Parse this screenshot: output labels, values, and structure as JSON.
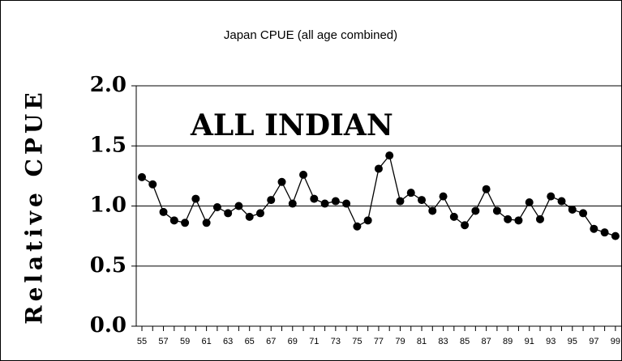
{
  "chart_data": {
    "type": "line",
    "title": "Japan CPUE (all age combined)",
    "y_label": "Relative CPUE",
    "annotation": "ALL INDIAN",
    "categories": [
      "55",
      null,
      "57",
      null,
      "59",
      null,
      "61",
      null,
      "63",
      null,
      "65",
      null,
      "67",
      null,
      "69",
      null,
      "71",
      null,
      "73",
      null,
      "75",
      null,
      "77",
      null,
      "79",
      null,
      "81",
      null,
      "83",
      null,
      "85",
      null,
      "87",
      null,
      "89",
      null,
      "91",
      null,
      "93",
      null,
      "95",
      null,
      "97",
      null,
      "99"
    ],
    "values": [
      1.24,
      1.18,
      0.95,
      0.88,
      0.86,
      1.06,
      0.86,
      0.99,
      0.94,
      1.0,
      0.91,
      0.94,
      1.05,
      1.2,
      1.02,
      1.26,
      1.06,
      1.02,
      1.04,
      1.02,
      0.83,
      0.88,
      1.31,
      1.42,
      1.04,
      1.11,
      1.05,
      0.96,
      1.08,
      0.91,
      0.84,
      0.96,
      1.14,
      0.96,
      0.89,
      0.88,
      1.03,
      0.89,
      1.08,
      1.04,
      0.97,
      0.94,
      0.81,
      0.78,
      0.75
    ],
    "color": "#000000",
    "ylim": [
      0,
      2
    ],
    "yticks": [
      {
        "value": 0,
        "label": "0.0"
      },
      {
        "value": 0.5,
        "label": "0.5"
      },
      {
        "value": 1,
        "label": "1.0"
      },
      {
        "value": 1.5,
        "label": "1.5"
      },
      {
        "value": 2,
        "label": "2.0"
      }
    ],
    "grid": true
  }
}
